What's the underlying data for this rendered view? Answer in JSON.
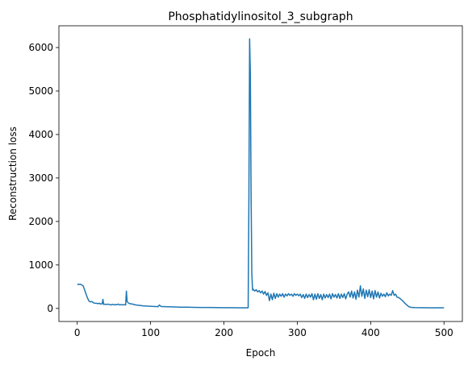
{
  "chart_data": {
    "type": "line",
    "title": "Phosphatidylinositol_3_subgraph",
    "xlabel": "Epoch",
    "ylabel": "Reconstruction loss",
    "xlim": [
      -25,
      525
    ],
    "ylim": [
      -300,
      6500
    ],
    "xticks": [
      0,
      100,
      200,
      300,
      400,
      500
    ],
    "yticks": [
      0,
      1000,
      2000,
      3000,
      4000,
      5000,
      6000
    ],
    "grid": false,
    "legend": "none",
    "series": [
      {
        "color": "#1f77b4",
        "points": [
          [
            0,
            560
          ],
          [
            2,
            550
          ],
          [
            4,
            560
          ],
          [
            6,
            540
          ],
          [
            8,
            520
          ],
          [
            10,
            430
          ],
          [
            12,
            330
          ],
          [
            14,
            240
          ],
          [
            16,
            170
          ],
          [
            18,
            150
          ],
          [
            20,
            160
          ],
          [
            22,
            130
          ],
          [
            24,
            120
          ],
          [
            26,
            120
          ],
          [
            28,
            110
          ],
          [
            30,
            120
          ],
          [
            32,
            100
          ],
          [
            34,
            110
          ],
          [
            35,
            210
          ],
          [
            36,
            90
          ],
          [
            38,
            100
          ],
          [
            40,
            90
          ],
          [
            42,
            100
          ],
          [
            44,
            90
          ],
          [
            46,
            80
          ],
          [
            48,
            95
          ],
          [
            50,
            85
          ],
          [
            52,
            90
          ],
          [
            54,
            85
          ],
          [
            56,
            100
          ],
          [
            58,
            80
          ],
          [
            60,
            90
          ],
          [
            62,
            80
          ],
          [
            64,
            90
          ],
          [
            66,
            80
          ],
          [
            67,
            400
          ],
          [
            68,
            160
          ],
          [
            70,
            120
          ],
          [
            72,
            110
          ],
          [
            75,
            100
          ],
          [
            80,
            80
          ],
          [
            85,
            70
          ],
          [
            90,
            60
          ],
          [
            95,
            55
          ],
          [
            100,
            50
          ],
          [
            105,
            45
          ],
          [
            110,
            40
          ],
          [
            112,
            80
          ],
          [
            114,
            45
          ],
          [
            120,
            40
          ],
          [
            130,
            35
          ],
          [
            140,
            30
          ],
          [
            150,
            28
          ],
          [
            160,
            25
          ],
          [
            170,
            23
          ],
          [
            180,
            21
          ],
          [
            190,
            20
          ],
          [
            200,
            18
          ],
          [
            210,
            17
          ],
          [
            220,
            16
          ],
          [
            230,
            15
          ],
          [
            233,
            15
          ],
          [
            234,
            2500
          ],
          [
            235,
            6200
          ],
          [
            236,
            5400
          ],
          [
            237,
            2600
          ],
          [
            238,
            800
          ],
          [
            239,
            420
          ],
          [
            240,
            440
          ],
          [
            242,
            400
          ],
          [
            244,
            430
          ],
          [
            246,
            380
          ],
          [
            248,
            410
          ],
          [
            250,
            360
          ],
          [
            252,
            400
          ],
          [
            254,
            330
          ],
          [
            256,
            390
          ],
          [
            258,
            300
          ],
          [
            260,
            360
          ],
          [
            262,
            180
          ],
          [
            264,
            330
          ],
          [
            266,
            200
          ],
          [
            268,
            350
          ],
          [
            270,
            230
          ],
          [
            272,
            340
          ],
          [
            274,
            260
          ],
          [
            276,
            330
          ],
          [
            278,
            280
          ],
          [
            280,
            340
          ],
          [
            282,
            260
          ],
          [
            284,
            330
          ],
          [
            286,
            290
          ],
          [
            288,
            340
          ],
          [
            290,
            300
          ],
          [
            292,
            330
          ],
          [
            294,
            280
          ],
          [
            296,
            340
          ],
          [
            298,
            300
          ],
          [
            300,
            330
          ],
          [
            302,
            290
          ],
          [
            304,
            330
          ],
          [
            306,
            250
          ],
          [
            308,
            320
          ],
          [
            310,
            230
          ],
          [
            312,
            330
          ],
          [
            314,
            250
          ],
          [
            316,
            320
          ],
          [
            318,
            260
          ],
          [
            320,
            340
          ],
          [
            322,
            200
          ],
          [
            324,
            330
          ],
          [
            326,
            210
          ],
          [
            328,
            340
          ],
          [
            330,
            230
          ],
          [
            332,
            320
          ],
          [
            334,
            200
          ],
          [
            336,
            330
          ],
          [
            338,
            240
          ],
          [
            340,
            320
          ],
          [
            342,
            250
          ],
          [
            344,
            330
          ],
          [
            346,
            220
          ],
          [
            348,
            340
          ],
          [
            350,
            260
          ],
          [
            352,
            320
          ],
          [
            354,
            240
          ],
          [
            356,
            340
          ],
          [
            358,
            230
          ],
          [
            360,
            330
          ],
          [
            362,
            250
          ],
          [
            364,
            340
          ],
          [
            366,
            220
          ],
          [
            368,
            330
          ],
          [
            370,
            380
          ],
          [
            372,
            260
          ],
          [
            374,
            400
          ],
          [
            376,
            240
          ],
          [
            378,
            380
          ],
          [
            380,
            210
          ],
          [
            382,
            420
          ],
          [
            384,
            260
          ],
          [
            386,
            520
          ],
          [
            388,
            280
          ],
          [
            390,
            450
          ],
          [
            392,
            230
          ],
          [
            394,
            420
          ],
          [
            396,
            270
          ],
          [
            398,
            430
          ],
          [
            400,
            250
          ],
          [
            402,
            400
          ],
          [
            404,
            220
          ],
          [
            406,
            410
          ],
          [
            408,
            260
          ],
          [
            410,
            380
          ],
          [
            412,
            240
          ],
          [
            414,
            350
          ],
          [
            416,
            280
          ],
          [
            418,
            330
          ],
          [
            420,
            270
          ],
          [
            422,
            360
          ],
          [
            424,
            290
          ],
          [
            426,
            330
          ],
          [
            428,
            300
          ],
          [
            430,
            410
          ],
          [
            432,
            300
          ],
          [
            434,
            330
          ],
          [
            436,
            260
          ],
          [
            438,
            250
          ],
          [
            440,
            230
          ],
          [
            442,
            200
          ],
          [
            444,
            170
          ],
          [
            446,
            130
          ],
          [
            448,
            100
          ],
          [
            450,
            70
          ],
          [
            452,
            40
          ],
          [
            455,
            25
          ],
          [
            460,
            20
          ],
          [
            470,
            18
          ],
          [
            480,
            16
          ],
          [
            490,
            15
          ],
          [
            500,
            14
          ]
        ]
      }
    ]
  }
}
